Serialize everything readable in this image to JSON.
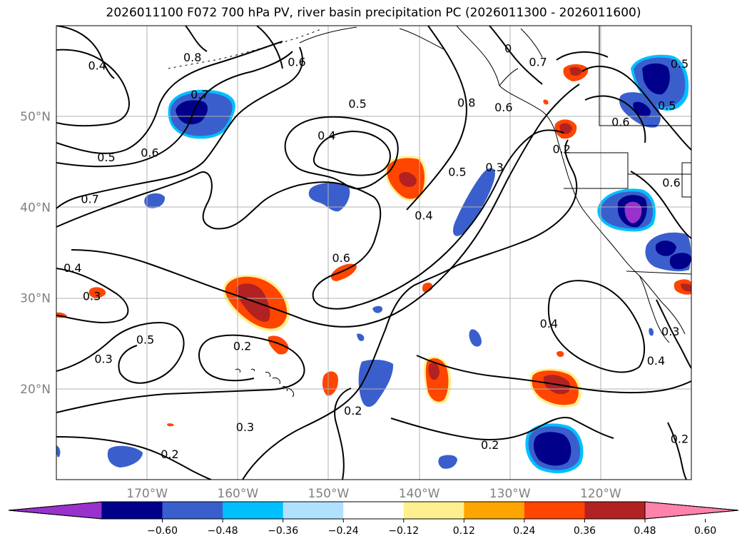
{
  "title": "2026011100 F072 700 hPa PV, river basin precipitation PC (2026011300 - 2026011600)",
  "map": {
    "extent": {
      "lon_min": -180,
      "lon_max": -110,
      "lat_min": 10,
      "lat_max": 60
    },
    "lat_ticks": [
      {
        "value": 20,
        "label": "20°N"
      },
      {
        "value": 30,
        "label": "30°N"
      },
      {
        "value": 40,
        "label": "40°N"
      },
      {
        "value": 50,
        "label": "50°N"
      }
    ],
    "lon_ticks": [
      {
        "value": -170,
        "label": "170°W"
      },
      {
        "value": -160,
        "label": "160°W"
      },
      {
        "value": -150,
        "label": "150°W"
      },
      {
        "value": -140,
        "label": "140°W"
      },
      {
        "value": -130,
        "label": "130°W"
      },
      {
        "value": -120,
        "label": "120°W"
      }
    ],
    "gridlines": true,
    "contour_labels": [
      {
        "text": "0.4",
        "lon": -175.5,
        "lat": 55.4
      },
      {
        "text": "0.8",
        "lon": -165,
        "lat": 56.3
      },
      {
        "text": "0.7",
        "lon": -164.2,
        "lat": 52.2
      },
      {
        "text": "0.6",
        "lon": -153.5,
        "lat": 55.8
      },
      {
        "text": "0.5",
        "lon": -174.5,
        "lat": 45.3
      },
      {
        "text": "0.6",
        "lon": -169.7,
        "lat": 45.8
      },
      {
        "text": "0.7",
        "lon": -176.3,
        "lat": 40.7
      },
      {
        "text": "0.5",
        "lon": -146.8,
        "lat": 51.2
      },
      {
        "text": "0.4",
        "lon": -150.2,
        "lat": 47.7
      },
      {
        "text": "0.8",
        "lon": -134.8,
        "lat": 51.3
      },
      {
        "text": "0.6",
        "lon": -130.7,
        "lat": 50.8
      },
      {
        "text": "0.7",
        "lon": -126.9,
        "lat": 55.8
      },
      {
        "text": "0",
        "lon": -130.2,
        "lat": 57.3
      },
      {
        "text": "0.5",
        "lon": -135.8,
        "lat": 43.7
      },
      {
        "text": "0.3",
        "lon": -131.7,
        "lat": 44.2
      },
      {
        "text": "0.4",
        "lon": -139.5,
        "lat": 38.9
      },
      {
        "text": "0.6",
        "lon": -148.6,
        "lat": 34.2
      },
      {
        "text": "0.4",
        "lon": -178.2,
        "lat": 33.1
      },
      {
        "text": "0.3",
        "lon": -176.1,
        "lat": 30.0
      },
      {
        "text": "0.5",
        "lon": -170.2,
        "lat": 25.2
      },
      {
        "text": "0.3",
        "lon": -174.8,
        "lat": 23.1
      },
      {
        "text": "0.2",
        "lon": -159.5,
        "lat": 24.5
      },
      {
        "text": "0.2",
        "lon": -147.3,
        "lat": 17.4
      },
      {
        "text": "0.3",
        "lon": -159.2,
        "lat": 15.6
      },
      {
        "text": "0.2",
        "lon": -167.5,
        "lat": 12.6
      },
      {
        "text": "0.2",
        "lon": -132.2,
        "lat": 13.6
      },
      {
        "text": "0.4",
        "lon": -125.7,
        "lat": 27.0
      },
      {
        "text": "0.2",
        "lon": -124.3,
        "lat": 46.2
      },
      {
        "text": "0.6",
        "lon": -117.8,
        "lat": 49.2
      },
      {
        "text": "0.6",
        "lon": -112.2,
        "lat": 42.5
      },
      {
        "text": "0.5",
        "lon": -112.7,
        "lat": 51.0
      },
      {
        "text": "0.3",
        "lon": -112.3,
        "lat": 26.1
      },
      {
        "text": "0.4",
        "lon": -113.9,
        "lat": 22.9
      },
      {
        "text": "0.2",
        "lon": -111.3,
        "lat": 14.3
      },
      {
        "text": "0.5",
        "lon": -111.3,
        "lat": 55.6
      }
    ]
  },
  "colorbar": {
    "ticks": [
      "−0.60",
      "−0.48",
      "−0.36",
      "−0.24",
      "−0.12",
      "0.12",
      "0.24",
      "0.36",
      "0.48",
      "0.60"
    ],
    "colors": [
      "#9932cc",
      "#00008b",
      "#3a5fcd",
      "#00bfff",
      "#b0e2ff",
      "#ffffff",
      "#fff08f",
      "#ffa500",
      "#ff4500",
      "#b22222",
      "#ff82ab"
    ],
    "extend": "both"
  }
}
